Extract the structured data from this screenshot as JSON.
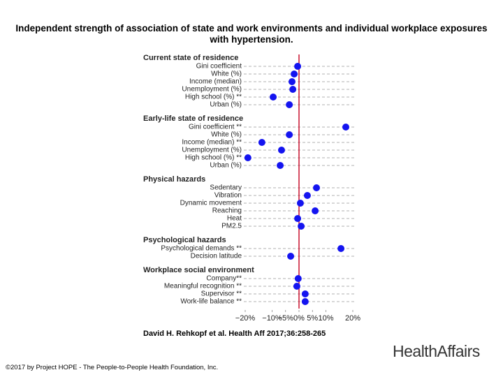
{
  "chart_data": {
    "type": "dot",
    "title": "Independent strength of association of state and work environments and individual workplace exposures with hypertension.",
    "color": "#1414f0",
    "reference_color": "#c8102e",
    "xlim": [
      -20,
      20
    ],
    "xticks": [
      {
        "value": -20,
        "label": "−20%"
      },
      {
        "value": -10,
        "label": "−10%"
      },
      {
        "value": -5,
        "label": "−5%"
      },
      {
        "value": 0,
        "label": "0%"
      },
      {
        "value": 5,
        "label": "5%"
      },
      {
        "value": 10,
        "label": "10%"
      },
      {
        "value": 20,
        "label": "20%"
      }
    ],
    "groups": [
      {
        "name": "Current state of residence",
        "categories": [
          "Gini coefficient",
          "White (%)",
          "Income (median)",
          "Unemployment (%)",
          "High school (%) **",
          "Urban (%)"
        ],
        "values": [
          -0.5,
          -1.8,
          -2.6,
          -2.3,
          -9.6,
          -3.6
        ]
      },
      {
        "name": "Early-life state of residence",
        "categories": [
          "Gini coefficient **",
          "White (%)",
          "Income (median) **",
          "Unemployment (%)",
          "High school (%) **",
          "Urban (%)"
        ],
        "values": [
          17.4,
          -3.6,
          -13.8,
          -6.5,
          -19,
          -7
        ]
      },
      {
        "name": "Physical hazards",
        "categories": [
          "Sedentary",
          "Vibration",
          "Dynamic movement",
          "Reaching",
          "Heat",
          "PM2.5"
        ],
        "values": [
          6.5,
          3.1,
          0.5,
          6,
          -0.5,
          0.8
        ]
      },
      {
        "name": "Psychological hazards",
        "categories": [
          "Psychological demands **",
          "Decision latitude"
        ],
        "values": [
          15.6,
          -3.1
        ]
      },
      {
        "name": "Workplace social environment",
        "categories": [
          "Company**",
          "Meaningful recognition **",
          "Supervisor **",
          "Work-life balance **"
        ],
        "values": [
          -0.3,
          -0.8,
          2.3,
          2.3
        ]
      }
    ]
  },
  "citation": "David H. Rehkopf et al. Health Aff 2017;36:258-265",
  "logo": "HealthAffairs",
  "copyright": "©2017 by Project HOPE - The People-to-People Health Foundation, Inc."
}
